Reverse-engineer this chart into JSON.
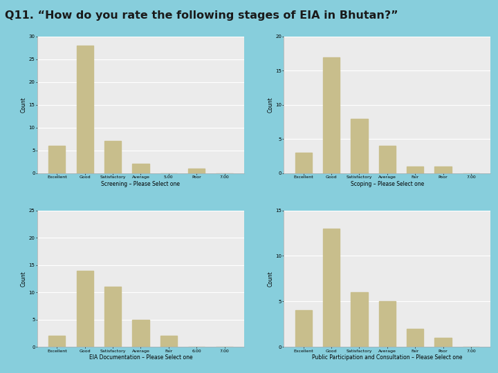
{
  "title": "Q11. “How do you rate the following stages of EIA in Bhutan?”",
  "title_bg": "#87CEDC",
  "title_color": "#1a1a1a",
  "bar_color": "#C8BE8C",
  "subplot_bg": "#EBEBEB",
  "outer_bg": "#87CEDC",
  "subplots": [
    {
      "xlabel": "Screening – Please Select one",
      "ylabel": "Count",
      "categories": [
        "Excellent",
        "Good",
        "Satisfactory",
        "Average",
        "5.00",
        "Poor",
        "7.00"
      ],
      "values": [
        6,
        28,
        7,
        2,
        0,
        1,
        0
      ],
      "ylim": [
        0,
        30
      ],
      "yticks": [
        0,
        5,
        10,
        15,
        20,
        25,
        30
      ]
    },
    {
      "xlabel": "Scoping – Please Select one",
      "ylabel": "Count",
      "categories": [
        "Excellent",
        "Good",
        "Satisfactory",
        "Average",
        "Fair",
        "Poor",
        "7.00"
      ],
      "values": [
        3,
        17,
        8,
        4,
        1,
        1,
        0
      ],
      "ylim": [
        0,
        20
      ],
      "yticks": [
        0,
        5,
        10,
        15,
        20
      ]
    },
    {
      "xlabel": "EIA Documentation – Please Select one",
      "ylabel": "Count",
      "categories": [
        "Excellent",
        "Good",
        "Satisfactory",
        "Average",
        "Fair",
        "6.00",
        "7.00"
      ],
      "values": [
        2,
        14,
        11,
        5,
        2,
        0,
        0
      ],
      "ylim": [
        0,
        25
      ],
      "yticks": [
        0,
        5,
        10,
        15,
        20,
        25
      ]
    },
    {
      "xlabel": "Public Participation and Consultation – Please Select one",
      "ylabel": "Count",
      "categories": [
        "Excellent",
        "Good",
        "Satisfactory",
        "Average",
        "Fair",
        "Poor",
        "7.00"
      ],
      "values": [
        4,
        13,
        6,
        5,
        2,
        1,
        0
      ],
      "ylim": [
        0,
        15
      ],
      "yticks": [
        0,
        5,
        10,
        15
      ]
    }
  ]
}
